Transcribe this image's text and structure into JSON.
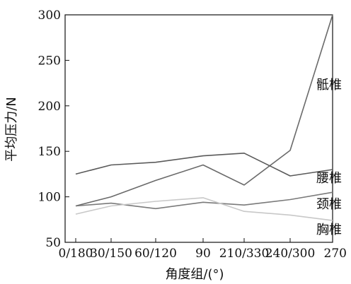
{
  "chart_data": {
    "type": "line",
    "xlabel": "角度组/(°)",
    "ylabel": "平均压力/N",
    "categories": [
      "0/180",
      "30/150",
      "60/120",
      "90",
      "210/330",
      "240/300",
      "270"
    ],
    "ylim": [
      50,
      300
    ],
    "yticks": [
      "50",
      "100",
      "150",
      "200",
      "250",
      "300"
    ],
    "grid": false,
    "series": [
      {
        "name": "骶椎",
        "values": [
          90,
          100,
          118,
          135,
          113,
          151,
          300
        ],
        "color": "#6a6a6a"
      },
      {
        "name": "腰椎",
        "values": [
          125,
          135,
          138,
          145,
          148,
          123,
          130
        ],
        "color": "#5a5a5a"
      },
      {
        "name": "颈椎",
        "values": [
          90,
          93,
          87,
          94,
          91,
          97,
          105
        ],
        "color": "#7a7a7a"
      },
      {
        "name": "胸椎",
        "values": [
          81,
          90,
          95,
          99,
          84,
          80,
          74
        ],
        "color": "#c8c8c8"
      }
    ]
  }
}
